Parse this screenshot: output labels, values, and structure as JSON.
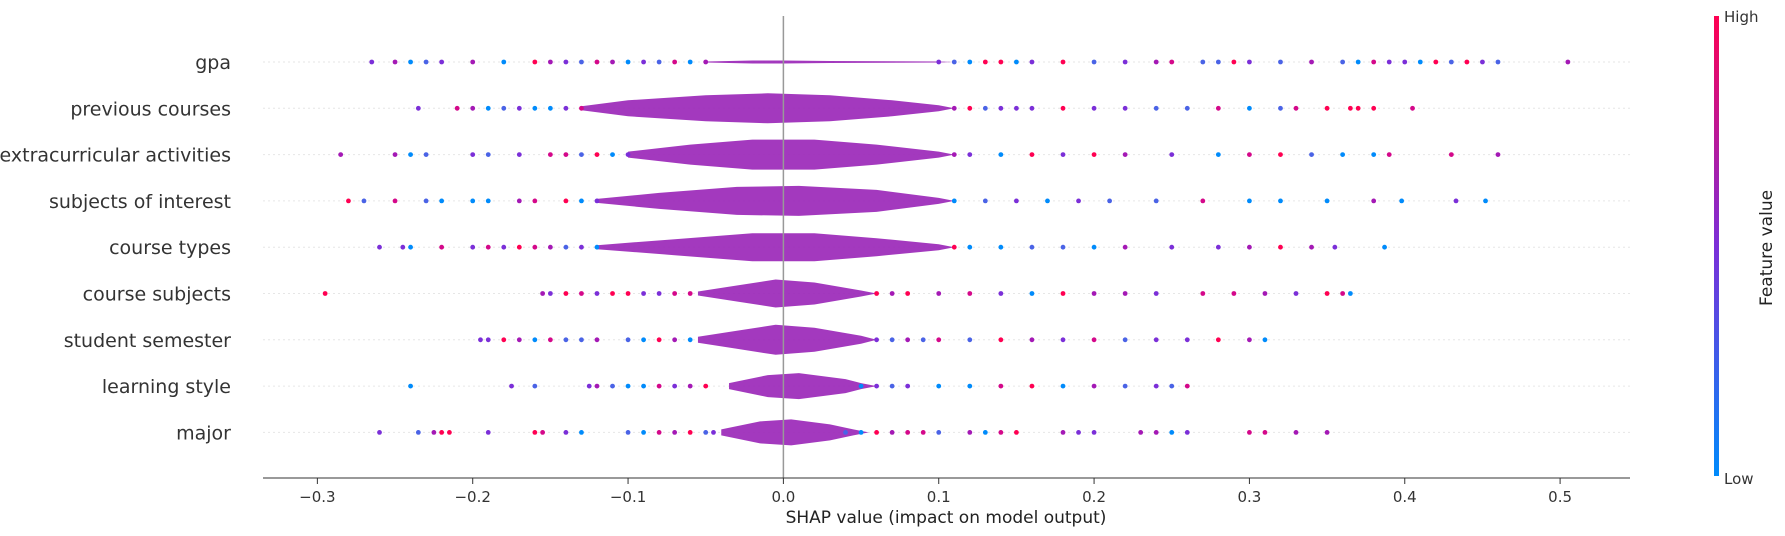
{
  "chart_data": {
    "type": "violin",
    "title": "",
    "xlabel": "SHAP value (impact on model output)",
    "xlim": [
      -0.335,
      0.545
    ],
    "x_ticks": [
      -0.3,
      -0.2,
      -0.1,
      0.0,
      0.1,
      0.2,
      0.3,
      0.4,
      0.5
    ],
    "x_tick_labels": [
      "−0.3",
      "−0.2",
      "−0.1",
      "0.0",
      "0.1",
      "0.2",
      "0.3",
      "0.4",
      "0.5"
    ],
    "colorbar": {
      "label": "Feature value",
      "high_label": "High",
      "low_label": "Low",
      "low_color": "#008bfb",
      "high_color": "#ff0052"
    },
    "features": [
      {
        "name": "gpa",
        "violin_halfwidth": [
          [
            -0.05,
            0.5
          ],
          [
            -0.02,
            1.5
          ],
          [
            0,
            1.5
          ],
          [
            0.03,
            1.0
          ],
          [
            0.1,
            0.5
          ]
        ],
        "points": [
          -0.265,
          -0.25,
          -0.24,
          -0.23,
          -0.22,
          -0.2,
          -0.18,
          -0.16,
          -0.15,
          -0.14,
          -0.13,
          -0.12,
          -0.11,
          -0.1,
          -0.09,
          -0.08,
          -0.07,
          -0.06,
          -0.05,
          0.1,
          0.11,
          0.12,
          0.13,
          0.14,
          0.15,
          0.16,
          0.18,
          0.2,
          0.22,
          0.24,
          0.25,
          0.27,
          0.28,
          0.29,
          0.3,
          0.32,
          0.34,
          0.36,
          0.37,
          0.38,
          0.39,
          0.4,
          0.41,
          0.42,
          0.43,
          0.44,
          0.45,
          0.46,
          0.505
        ]
      },
      {
        "name": "previous courses",
        "violin_halfwidth": [
          [
            -0.13,
            2
          ],
          [
            -0.1,
            8
          ],
          [
            -0.05,
            13
          ],
          [
            -0.01,
            15
          ],
          [
            0.03,
            13
          ],
          [
            0.07,
            8
          ],
          [
            0.1,
            3
          ]
        ],
        "points": [
          -0.235,
          -0.21,
          -0.2,
          -0.19,
          -0.18,
          -0.17,
          -0.16,
          -0.15,
          -0.14,
          -0.13,
          0.11,
          0.12,
          0.13,
          0.14,
          0.15,
          0.16,
          0.18,
          0.2,
          0.22,
          0.24,
          0.26,
          0.28,
          0.3,
          0.32,
          0.33,
          0.35,
          0.365,
          0.37,
          0.38,
          0.405
        ]
      },
      {
        "name": "extracurricular activities",
        "violin_halfwidth": [
          [
            -0.1,
            3
          ],
          [
            -0.06,
            10
          ],
          [
            -0.02,
            15
          ],
          [
            0.02,
            15
          ],
          [
            0.06,
            10
          ],
          [
            0.1,
            3
          ]
        ],
        "points": [
          -0.285,
          -0.25,
          -0.24,
          -0.23,
          -0.2,
          -0.19,
          -0.17,
          -0.15,
          -0.14,
          -0.13,
          -0.12,
          -0.11,
          -0.1,
          0.11,
          0.12,
          0.14,
          0.16,
          0.18,
          0.2,
          0.22,
          0.25,
          0.28,
          0.3,
          0.32,
          0.34,
          0.36,
          0.38,
          0.39,
          0.43,
          0.46
        ]
      },
      {
        "name": "subjects of interest",
        "violin_halfwidth": [
          [
            -0.12,
            2
          ],
          [
            -0.08,
            8
          ],
          [
            -0.03,
            14
          ],
          [
            0.01,
            15
          ],
          [
            0.06,
            11
          ],
          [
            0.1,
            3
          ]
        ],
        "points": [
          -0.28,
          -0.27,
          -0.25,
          -0.23,
          -0.22,
          -0.2,
          -0.19,
          -0.17,
          -0.16,
          -0.14,
          -0.13,
          -0.12,
          0.11,
          0.13,
          0.15,
          0.17,
          0.19,
          0.21,
          0.24,
          0.27,
          0.3,
          0.32,
          0.35,
          0.38,
          0.398,
          0.433,
          0.452
        ]
      },
      {
        "name": "course types",
        "violin_halfwidth": [
          [
            -0.12,
            2
          ],
          [
            -0.07,
            8
          ],
          [
            -0.02,
            14
          ],
          [
            0.02,
            14
          ],
          [
            0.06,
            9
          ],
          [
            0.1,
            3
          ]
        ],
        "points": [
          -0.26,
          -0.245,
          -0.24,
          -0.22,
          -0.2,
          -0.19,
          -0.18,
          -0.17,
          -0.16,
          -0.15,
          -0.14,
          -0.13,
          -0.12,
          0.11,
          0.12,
          0.14,
          0.16,
          0.18,
          0.2,
          0.22,
          0.25,
          0.28,
          0.3,
          0.32,
          0.34,
          0.355,
          0.387
        ]
      },
      {
        "name": "course subjects",
        "violin_halfwidth": [
          [
            -0.055,
            2
          ],
          [
            -0.03,
            8
          ],
          [
            -0.005,
            14
          ],
          [
            0.02,
            11
          ],
          [
            0.05,
            3
          ]
        ],
        "points": [
          -0.295,
          -0.155,
          -0.15,
          -0.14,
          -0.13,
          -0.12,
          -0.11,
          -0.1,
          -0.09,
          -0.08,
          -0.07,
          -0.06,
          0.06,
          0.07,
          0.08,
          0.1,
          0.12,
          0.14,
          0.16,
          0.18,
          0.2,
          0.22,
          0.24,
          0.27,
          0.29,
          0.31,
          0.33,
          0.35,
          0.36,
          0.365
        ]
      },
      {
        "name": "student semester",
        "violin_halfwidth": [
          [
            -0.055,
            3
          ],
          [
            -0.03,
            9
          ],
          [
            -0.005,
            15
          ],
          [
            0.02,
            12
          ],
          [
            0.05,
            4
          ]
        ],
        "points": [
          -0.195,
          -0.19,
          -0.18,
          -0.17,
          -0.16,
          -0.15,
          -0.14,
          -0.13,
          -0.12,
          -0.1,
          -0.09,
          -0.08,
          -0.07,
          -0.06,
          0.06,
          0.07,
          0.08,
          0.09,
          0.1,
          0.12,
          0.14,
          0.16,
          0.18,
          0.2,
          0.22,
          0.24,
          0.26,
          0.28,
          0.3,
          0.31
        ]
      },
      {
        "name": "learning style",
        "violin_halfwidth": [
          [
            -0.035,
            3
          ],
          [
            -0.01,
            11
          ],
          [
            0.01,
            13
          ],
          [
            0.04,
            7
          ],
          [
            0.05,
            3
          ]
        ],
        "points": [
          -0.24,
          -0.175,
          -0.16,
          -0.125,
          -0.12,
          -0.11,
          -0.1,
          -0.09,
          -0.08,
          -0.07,
          -0.06,
          -0.05,
          0.05,
          0.06,
          0.07,
          0.08,
          0.1,
          0.12,
          0.14,
          0.16,
          0.18,
          0.2,
          0.22,
          0.24,
          0.25,
          0.26
        ]
      },
      {
        "name": "major",
        "violin_halfwidth": [
          [
            -0.04,
            3
          ],
          [
            -0.015,
            11
          ],
          [
            0.005,
            13
          ],
          [
            0.03,
            8
          ],
          [
            0.045,
            3
          ]
        ],
        "points": [
          -0.26,
          -0.235,
          -0.225,
          -0.22,
          -0.215,
          -0.19,
          -0.16,
          -0.155,
          -0.14,
          -0.13,
          -0.1,
          -0.09,
          -0.08,
          -0.07,
          -0.06,
          -0.05,
          -0.045,
          0.04,
          0.05,
          0.06,
          0.07,
          0.08,
          0.09,
          0.1,
          0.12,
          0.13,
          0.14,
          0.15,
          0.18,
          0.19,
          0.2,
          0.23,
          0.24,
          0.25,
          0.26,
          0.3,
          0.31,
          0.33,
          0.35
        ]
      }
    ]
  }
}
